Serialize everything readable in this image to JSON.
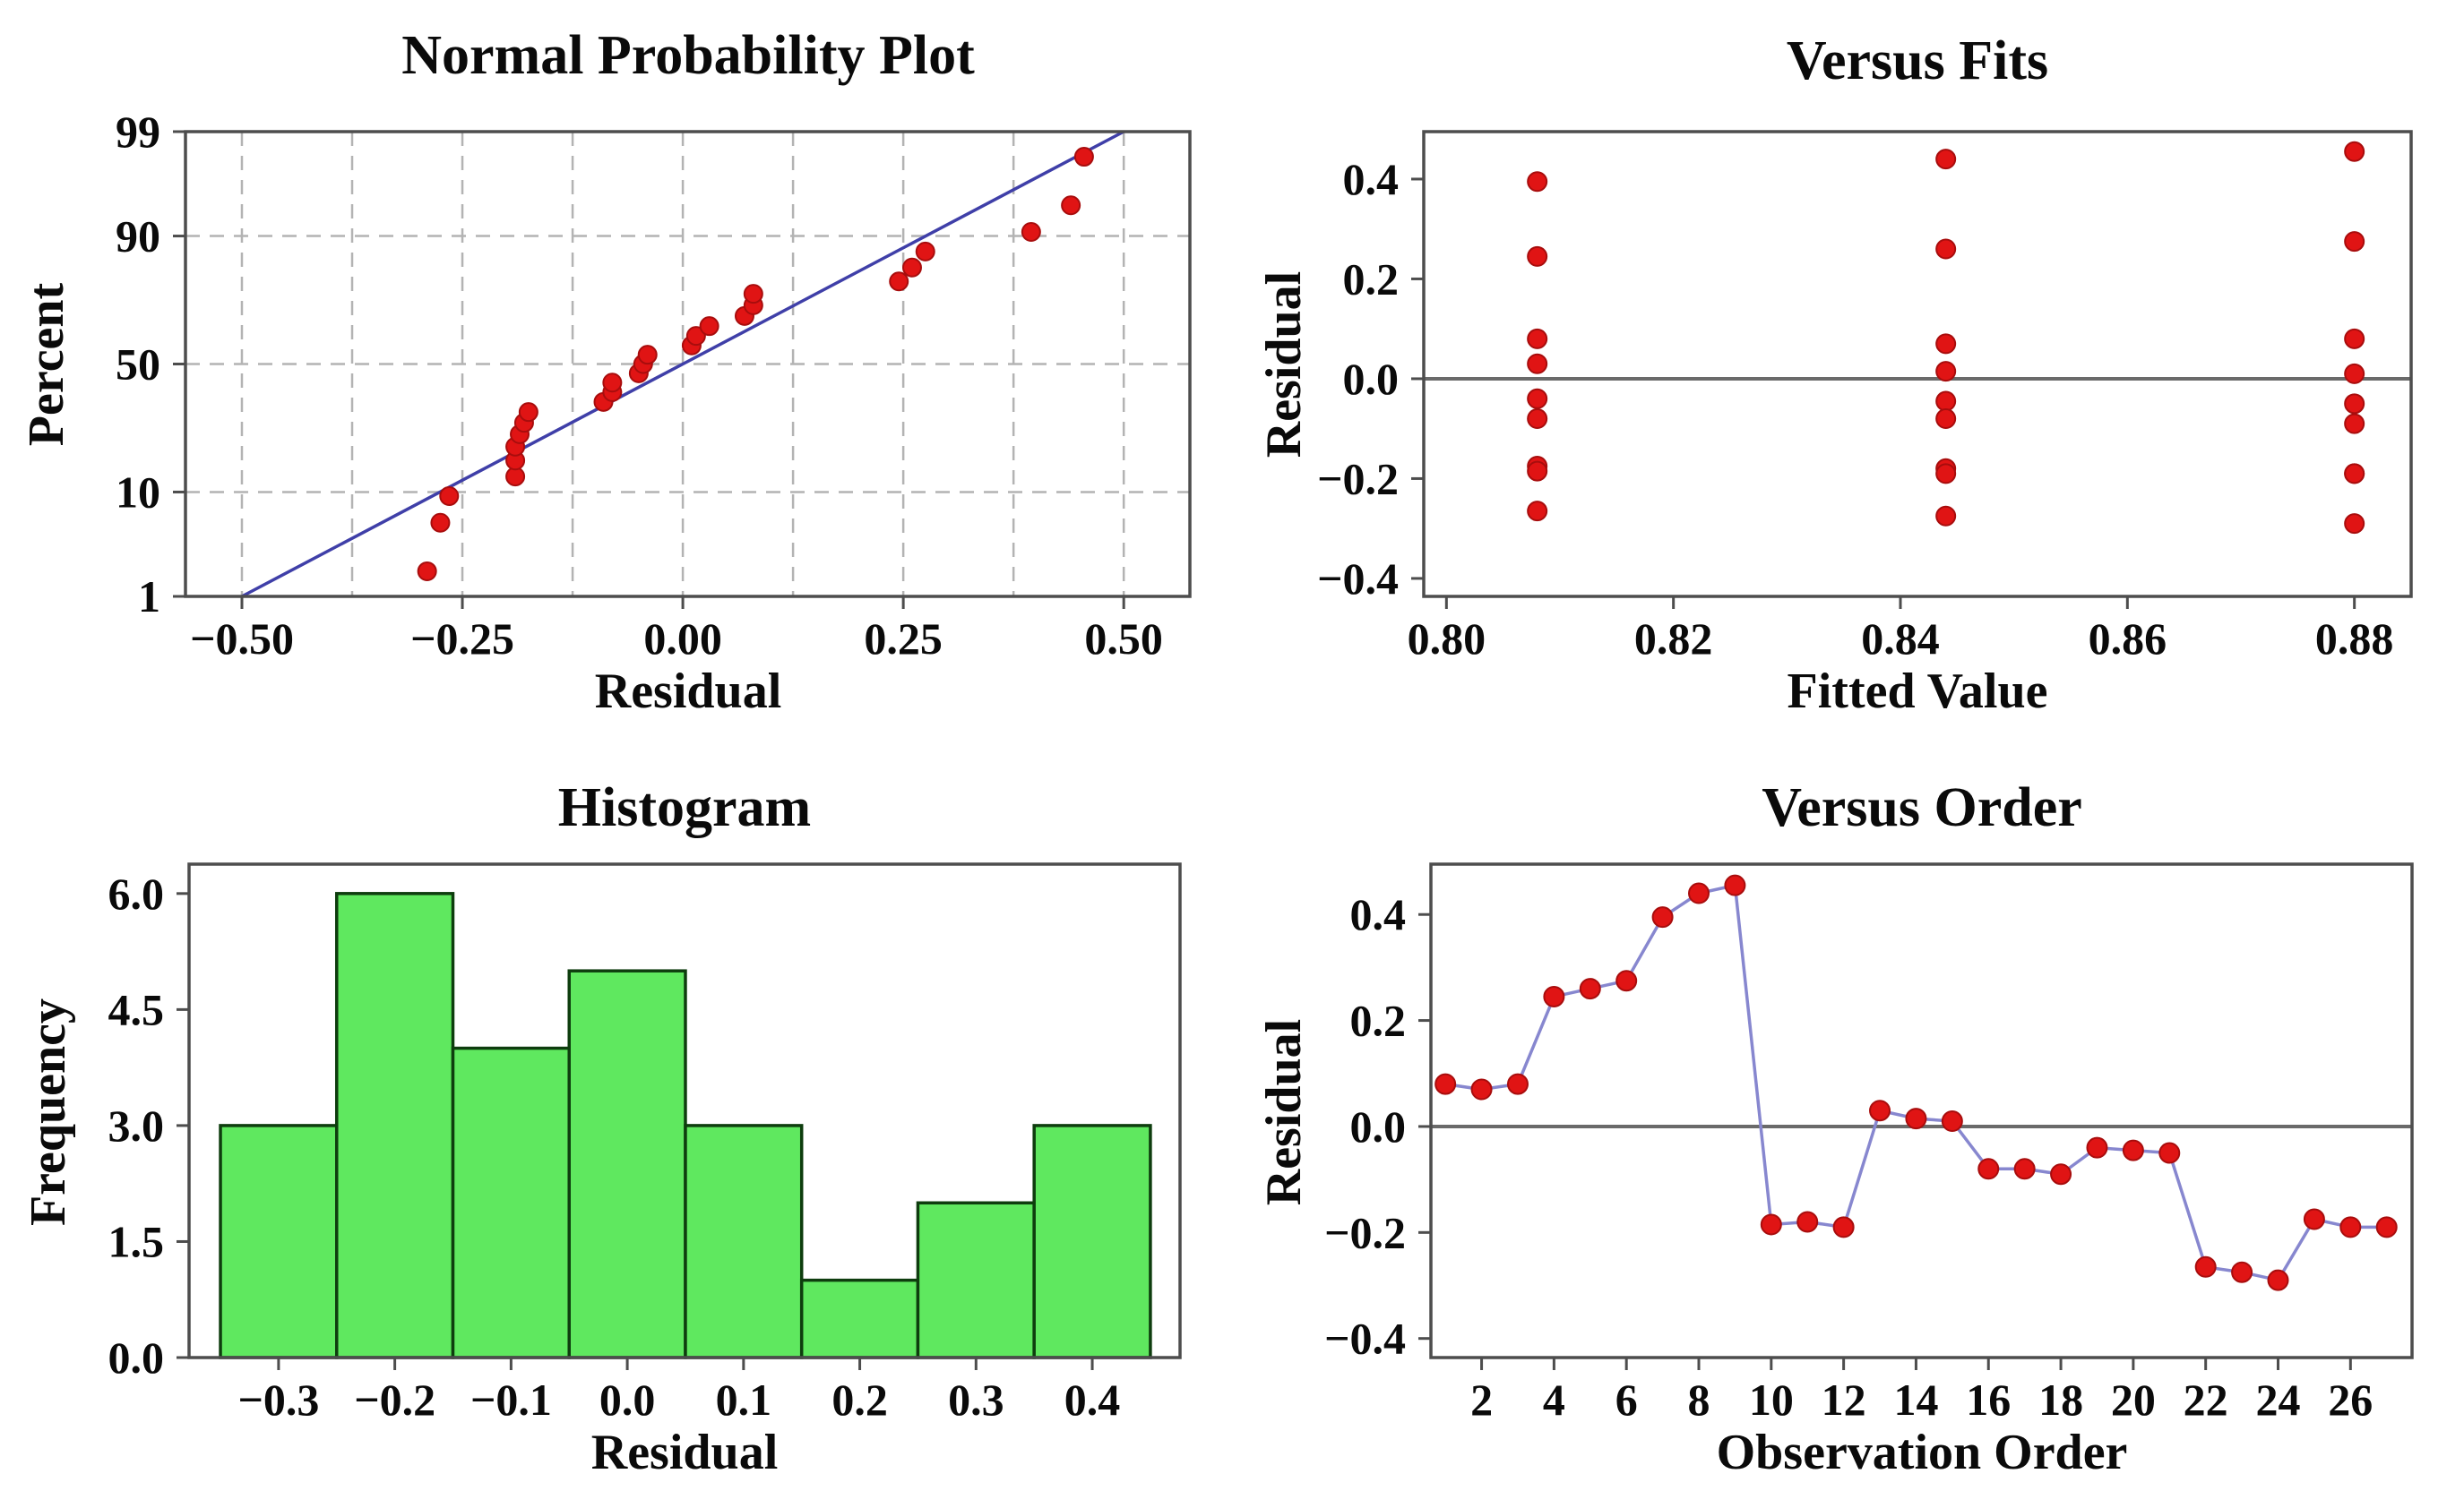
{
  "page": {
    "background": "#ffffff"
  },
  "colors": {
    "dot": "#E01414",
    "dot_edge": "#A80D0D",
    "fit_line": "#3F3FA8",
    "connector": "#8787CF",
    "bar_fill": "#5FE85F",
    "bar_edge": "#0E3D0E",
    "frame": "#4D4D4D",
    "grid": "#B3B3B3",
    "zero_line": "#6A6A6A",
    "text": "#0A0A0A"
  },
  "chart_data": [
    {
      "id": "normal-probability-plot",
      "type": "scatter",
      "title": "Normal Probability Plot",
      "xlabel": "Residual",
      "ylabel": "Percent",
      "y_scale": "normal-probability",
      "grid": true,
      "xlim": [
        -0.564,
        0.575
      ],
      "ylim": [
        1,
        99
      ],
      "x_ticks": {
        "values": [
          -0.5,
          -0.25,
          0,
          0.25,
          0.5
        ],
        "labels": [
          "−0.50",
          "−0.25",
          "0.00",
          "0.25",
          "0.50"
        ]
      },
      "y_ticks": {
        "values": [
          1,
          10,
          50,
          90,
          99
        ],
        "labels": [
          "1",
          "10",
          "50",
          "90",
          "99"
        ]
      },
      "x_grid": [
        -0.5,
        -0.375,
        -0.25,
        -0.125,
        0,
        0.125,
        0.25,
        0.375,
        0.5
      ],
      "fit_line": [
        [
          -0.5,
          1
        ],
        [
          0.5,
          99
        ]
      ],
      "points": [
        [
          -0.29,
          1.9
        ],
        [
          -0.275,
          5.6
        ],
        [
          -0.265,
          9.3
        ],
        [
          -0.19,
          13.0
        ],
        [
          -0.19,
          16.7
        ],
        [
          -0.19,
          20.4
        ],
        [
          -0.185,
          24.1
        ],
        [
          -0.18,
          27.8
        ],
        [
          -0.175,
          31.5
        ],
        [
          -0.09,
          35.2
        ],
        [
          -0.08,
          38.9
        ],
        [
          -0.08,
          42.6
        ],
        [
          -0.05,
          46.3
        ],
        [
          -0.045,
          50.0
        ],
        [
          -0.04,
          53.7
        ],
        [
          0.01,
          57.4
        ],
        [
          0.015,
          61.1
        ],
        [
          0.03,
          64.8
        ],
        [
          0.07,
          68.5
        ],
        [
          0.08,
          72.2
        ],
        [
          0.08,
          75.9
        ],
        [
          0.245,
          79.6
        ],
        [
          0.26,
          83.3
        ],
        [
          0.275,
          87.0
        ],
        [
          0.395,
          90.7
        ],
        [
          0.44,
          94.4
        ],
        [
          0.455,
          98.1
        ]
      ]
    },
    {
      "id": "versus-fits",
      "type": "scatter",
      "title": "Versus Fits",
      "xlabel": "Fitted Value",
      "ylabel": "Residual",
      "grid": false,
      "zero_line": true,
      "xlim": [
        0.798,
        0.885
      ],
      "ylim": [
        -0.436,
        0.495
      ],
      "x_ticks": {
        "values": [
          0.8,
          0.82,
          0.84,
          0.86,
          0.88
        ],
        "labels": [
          "0.80",
          "0.82",
          "0.84",
          "0.86",
          "0.88"
        ]
      },
      "y_ticks": {
        "values": [
          -0.4,
          -0.2,
          0,
          0.2,
          0.4
        ],
        "labels": [
          "−0.4",
          "−0.2",
          "0.0",
          "0.2",
          "0.4"
        ]
      },
      "points": [
        [
          0.808,
          0.395
        ],
        [
          0.808,
          0.245
        ],
        [
          0.808,
          0.08
        ],
        [
          0.808,
          0.03
        ],
        [
          0.808,
          -0.04
        ],
        [
          0.808,
          -0.08
        ],
        [
          0.808,
          -0.175
        ],
        [
          0.808,
          -0.185
        ],
        [
          0.808,
          -0.265
        ],
        [
          0.844,
          0.44
        ],
        [
          0.844,
          0.26
        ],
        [
          0.844,
          0.07
        ],
        [
          0.844,
          0.015
        ],
        [
          0.844,
          -0.045
        ],
        [
          0.844,
          -0.08
        ],
        [
          0.844,
          -0.18
        ],
        [
          0.844,
          -0.19
        ],
        [
          0.844,
          -0.275
        ],
        [
          0.88,
          0.455
        ],
        [
          0.88,
          0.275
        ],
        [
          0.88,
          0.08
        ],
        [
          0.88,
          0.01
        ],
        [
          0.88,
          -0.05
        ],
        [
          0.88,
          -0.09
        ],
        [
          0.88,
          -0.19
        ],
        [
          0.88,
          -0.19
        ],
        [
          0.88,
          -0.29
        ]
      ]
    },
    {
      "id": "histogram",
      "type": "bar",
      "title": "Histogram",
      "xlabel": "Residual",
      "ylabel": "Frequency",
      "grid": false,
      "xlim": [
        -0.377,
        0.4755
      ],
      "ylim": [
        0,
        6.38
      ],
      "bin_width": 0.1,
      "bars": {
        "centers": [
          -0.3,
          -0.2,
          -0.1,
          0,
          0.1,
          0.2,
          0.3,
          0.4
        ],
        "counts": [
          3,
          6,
          4,
          5,
          3,
          1,
          2,
          3
        ]
      },
      "x_ticks": {
        "values": [
          -0.3,
          -0.2,
          -0.1,
          0,
          0.1,
          0.2,
          0.3,
          0.4
        ],
        "labels": [
          "−0.3",
          "−0.2",
          "−0.1",
          "0.0",
          "0.1",
          "0.2",
          "0.3",
          "0.4"
        ]
      },
      "y_ticks": {
        "values": [
          0,
          1.5,
          3,
          4.5,
          6
        ],
        "labels": [
          "0.0",
          "1.5",
          "3.0",
          "4.5",
          "6.0"
        ]
      }
    },
    {
      "id": "versus-order",
      "type": "line",
      "title": "Versus Order",
      "xlabel": "Observation Order",
      "ylabel": "Residual",
      "grid": false,
      "zero_line": true,
      "xlim": [
        0.6,
        27.7
      ],
      "ylim": [
        -0.436,
        0.495
      ],
      "x_ticks": {
        "values": [
          2,
          4,
          6,
          8,
          10,
          12,
          14,
          16,
          18,
          20,
          22,
          24,
          26
        ],
        "labels": [
          "2",
          "4",
          "6",
          "8",
          "10",
          "12",
          "14",
          "16",
          "18",
          "20",
          "22",
          "24",
          "26"
        ]
      },
      "y_ticks": {
        "values": [
          -0.4,
          -0.2,
          0,
          0.2,
          0.4
        ],
        "labels": [
          "−0.4",
          "−0.2",
          "0.0",
          "0.2",
          "0.4"
        ]
      },
      "x": [
        1,
        2,
        3,
        4,
        5,
        6,
        7,
        8,
        9,
        10,
        11,
        12,
        13,
        14,
        15,
        16,
        17,
        18,
        19,
        20,
        21,
        22,
        23,
        24,
        25,
        26,
        27
      ],
      "values": [
        0.08,
        0.07,
        0.08,
        0.245,
        0.26,
        0.275,
        0.395,
        0.44,
        0.455,
        -0.185,
        -0.18,
        -0.19,
        0.03,
        0.015,
        0.01,
        -0.08,
        -0.08,
        -0.09,
        -0.04,
        -0.045,
        -0.05,
        -0.265,
        -0.275,
        -0.29,
        -0.175,
        -0.19,
        -0.19
      ]
    }
  ]
}
